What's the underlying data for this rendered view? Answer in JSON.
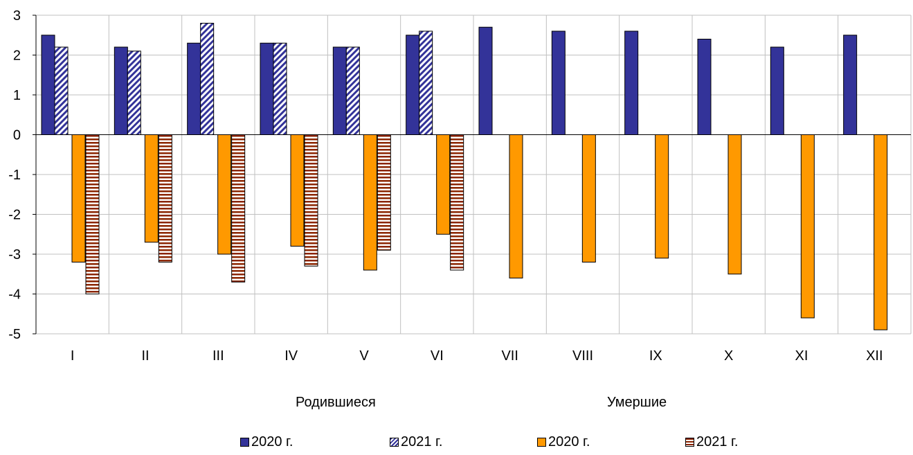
{
  "chart_data": {
    "type": "bar",
    "categories": [
      "I",
      "II",
      "III",
      "IV",
      "V",
      "VI",
      "VII",
      "VIII",
      "IX",
      "X",
      "XI",
      "XII"
    ],
    "ylim": [
      -5,
      3
    ],
    "yticks": [
      3,
      2,
      1,
      0,
      -1,
      -2,
      -3,
      -4,
      -5
    ],
    "grid": true,
    "group_labels": [
      "Родившиеся",
      "Умершие"
    ],
    "series": [
      {
        "name": "2020 г.",
        "group": "Родившиеся",
        "color": "#333399",
        "pattern": "solid",
        "values": [
          2.5,
          2.2,
          2.3,
          2.3,
          2.2,
          2.5,
          2.7,
          2.6,
          2.6,
          2.4,
          2.2,
          2.5
        ]
      },
      {
        "name": "2021 г.",
        "group": "Родившиеся",
        "color": "#333399",
        "pattern": "diagonal-hatch",
        "values": [
          2.2,
          2.1,
          2.8,
          2.3,
          2.2,
          2.6,
          null,
          null,
          null,
          null,
          null,
          null
        ]
      },
      {
        "name": "2020 г.",
        "group": "Умершие",
        "color": "#ff9900",
        "pattern": "solid",
        "values": [
          -3.2,
          -2.7,
          -3.0,
          -2.8,
          -3.4,
          -2.5,
          -3.6,
          -3.2,
          -3.1,
          -3.5,
          -4.6,
          -4.9
        ]
      },
      {
        "name": "2021 г.",
        "group": "Умершие",
        "color": "#8b2500",
        "pattern": "horizontal-stripes",
        "values": [
          -4.0,
          -3.2,
          -3.7,
          -3.3,
          -2.9,
          -3.4,
          null,
          null,
          null,
          null,
          null,
          null
        ]
      }
    ],
    "legend_position": "bottom"
  }
}
